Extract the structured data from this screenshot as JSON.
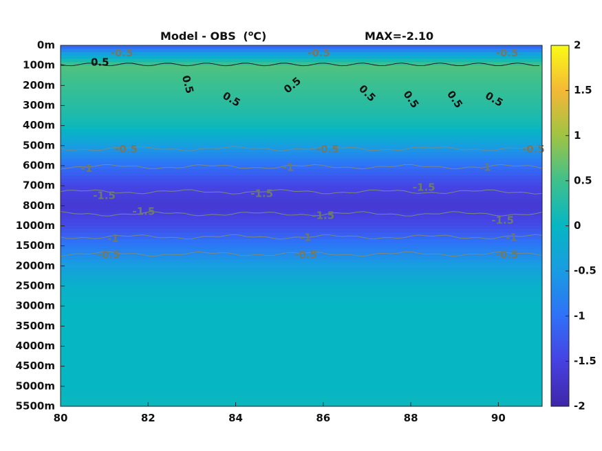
{
  "chart_data": {
    "type": "heatmap",
    "title": "Model - OBS",
    "title_unit_prefix": "(",
    "title_unit_sup": "o",
    "title_unit_suffix": "C)",
    "max_label": "MAX=-2.10",
    "xlim": [
      80,
      91
    ],
    "x_ticks": [
      80,
      82,
      84,
      86,
      88,
      90
    ],
    "y_tick_labels": [
      "0m",
      "100m",
      "200m",
      "300m",
      "400m",
      "500m",
      "600m",
      "700m",
      "800m",
      "1000m",
      "1500m",
      "2000m",
      "2500m",
      "3000m",
      "3500m",
      "4000m",
      "4500m",
      "5000m",
      "5500m"
    ],
    "colorbar": {
      "range": [
        -2,
        2
      ],
      "ticks": [
        -2,
        -1.5,
        -1,
        -0.5,
        0,
        0.5,
        1,
        1.5,
        2
      ],
      "tick_labels": [
        "-2",
        "-1.5",
        "-1",
        "-0.5",
        "0",
        "0.5",
        "1",
        "1.5",
        "2"
      ]
    },
    "depth_profile": [
      {
        "depth": "0m",
        "value": -1.2
      },
      {
        "depth": "100m",
        "value": 0.6
      },
      {
        "depth": "200m",
        "value": 0.45
      },
      {
        "depth": "300m",
        "value": 0.3
      },
      {
        "depth": "400m",
        "value": 0.1
      },
      {
        "depth": "500m",
        "value": -0.45
      },
      {
        "depth": "600m",
        "value": -1.0
      },
      {
        "depth": "700m",
        "value": -1.45
      },
      {
        "depth": "800m",
        "value": -1.65
      },
      {
        "depth": "1000m",
        "value": -1.4
      },
      {
        "depth": "1500m",
        "value": -0.9
      },
      {
        "depth": "2000m",
        "value": -0.45
      },
      {
        "depth": "2500m",
        "value": -0.1
      },
      {
        "depth": "3000m",
        "value": 0.0
      },
      {
        "depth": "3500m",
        "value": 0.0
      },
      {
        "depth": "4000m",
        "value": 0.0
      },
      {
        "depth": "4500m",
        "value": 0.0
      },
      {
        "depth": "5000m",
        "value": 0.0
      },
      {
        "depth": "5500m",
        "value": 0.05
      }
    ],
    "contour_labels": [
      {
        "text": "0.5",
        "x": 80.9,
        "depth_index": 0.85,
        "style": "dark",
        "angle": 0
      },
      {
        "text": "0.5",
        "x": 82.9,
        "depth_index": 1.95,
        "style": "dark",
        "angle": 75
      },
      {
        "text": "0.5",
        "x": 83.9,
        "depth_index": 2.7,
        "style": "dark",
        "angle": 30
      },
      {
        "text": "0.5",
        "x": 85.3,
        "depth_index": 2.0,
        "style": "dark",
        "angle": -40
      },
      {
        "text": "0.5",
        "x": 87.0,
        "depth_index": 2.4,
        "style": "dark",
        "angle": 45
      },
      {
        "text": "0.5",
        "x": 88.0,
        "depth_index": 2.7,
        "style": "dark",
        "angle": 55
      },
      {
        "text": "0.5",
        "x": 89.0,
        "depth_index": 2.7,
        "style": "dark",
        "angle": 55
      },
      {
        "text": "0.5",
        "x": 89.9,
        "depth_index": 2.7,
        "style": "dark",
        "angle": 30
      },
      {
        "text": "-0.5",
        "x": 81.4,
        "depth_index": 0.4,
        "style": "grey",
        "angle": 0
      },
      {
        "text": "-0.5",
        "x": 85.9,
        "depth_index": 0.4,
        "style": "grey",
        "angle": 0
      },
      {
        "text": "-0.5",
        "x": 90.2,
        "depth_index": 0.4,
        "style": "grey",
        "angle": 0
      },
      {
        "text": "-0.5",
        "x": 81.5,
        "depth_index": 5.2,
        "style": "grey",
        "angle": 0
      },
      {
        "text": "-0.5",
        "x": 86.1,
        "depth_index": 5.2,
        "style": "grey",
        "angle": 0
      },
      {
        "text": "-0.5",
        "x": 90.8,
        "depth_index": 5.2,
        "style": "grey",
        "angle": 0
      },
      {
        "text": "-1",
        "x": 80.6,
        "depth_index": 6.15,
        "style": "grey",
        "angle": 0
      },
      {
        "text": "-1",
        "x": 85.2,
        "depth_index": 6.1,
        "style": "grey",
        "angle": 0
      },
      {
        "text": "-1",
        "x": 89.7,
        "depth_index": 6.1,
        "style": "grey",
        "angle": 0
      },
      {
        "text": "-1.5",
        "x": 81.0,
        "depth_index": 7.5,
        "style": "grey",
        "angle": 0
      },
      {
        "text": "-1.5",
        "x": 84.6,
        "depth_index": 7.4,
        "style": "grey",
        "angle": 0
      },
      {
        "text": "-1.5",
        "x": 88.3,
        "depth_index": 7.1,
        "style": "grey",
        "angle": 0
      },
      {
        "text": "-1.5",
        "x": 81.9,
        "depth_index": 8.3,
        "style": "grey",
        "angle": 0
      },
      {
        "text": "-1.5",
        "x": 86.0,
        "depth_index": 8.5,
        "style": "grey",
        "angle": 0
      },
      {
        "text": "-1.5",
        "x": 90.1,
        "depth_index": 8.75,
        "style": "grey",
        "angle": 0
      },
      {
        "text": "-1",
        "x": 81.2,
        "depth_index": 9.65,
        "style": "grey",
        "angle": 0
      },
      {
        "text": "-1",
        "x": 85.6,
        "depth_index": 9.6,
        "style": "grey",
        "angle": 0
      },
      {
        "text": "-1",
        "x": 90.3,
        "depth_index": 9.6,
        "style": "grey",
        "angle": 0
      },
      {
        "text": "-0.5",
        "x": 81.1,
        "depth_index": 10.45,
        "style": "grey",
        "angle": 0
      },
      {
        "text": "-0.5",
        "x": 85.6,
        "depth_index": 10.45,
        "style": "grey",
        "angle": 0
      },
      {
        "text": "-0.5",
        "x": 90.2,
        "depth_index": 10.45,
        "style": "grey",
        "angle": 0
      }
    ],
    "grid": false,
    "legend": "colorbar-right"
  }
}
